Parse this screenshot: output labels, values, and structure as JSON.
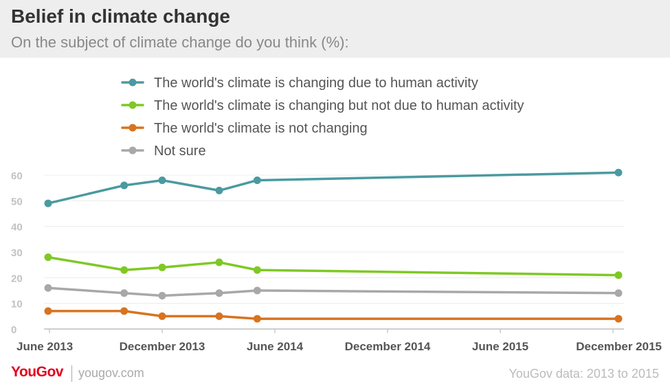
{
  "header": {
    "title": "Belief in climate change",
    "subtitle": "On the subject of climate change do you think (%):"
  },
  "footer": {
    "logo": "YouGov",
    "site": "yougov.com",
    "source": "YouGov data: 2013 to 2015"
  },
  "colors": {
    "human": "#4a9aa0",
    "not_human": "#7ec924",
    "not_changing": "#d8731f",
    "not_sure": "#a8a8a8",
    "header_bg": "#eeeeee",
    "brand": "#e3001b"
  },
  "chart_data": {
    "type": "line",
    "title": "Belief in climate change",
    "subtitle": "On the subject of climate change do you think (%):",
    "x_ticks": [
      "June 2013",
      "December 2013",
      "June 2014",
      "December 2014",
      "June 2015",
      "December 2015"
    ],
    "y_ticks": [
      0,
      10,
      20,
      30,
      40,
      50,
      60
    ],
    "ylim": [
      0,
      60
    ],
    "grid": true,
    "legend_position": "top",
    "x": [
      "2013-06",
      "2013-10",
      "2013-12",
      "2014-03",
      "2014-05",
      "2015-12"
    ],
    "series": [
      {
        "name": "The world's climate is changing due to human activity",
        "color": "#4a9aa0",
        "values": [
          49,
          56,
          58,
          54,
          58,
          61
        ]
      },
      {
        "name": "The world's climate is changing but not due to human activity",
        "color": "#7ec924",
        "values": [
          28,
          23,
          24,
          26,
          23,
          21
        ]
      },
      {
        "name": "The world's climate is not changing",
        "color": "#d8731f",
        "values": [
          7,
          7,
          5,
          5,
          4,
          4
        ]
      },
      {
        "name": "Not sure",
        "color": "#a8a8a8",
        "values": [
          16,
          14,
          13,
          14,
          15,
          14
        ]
      }
    ]
  }
}
